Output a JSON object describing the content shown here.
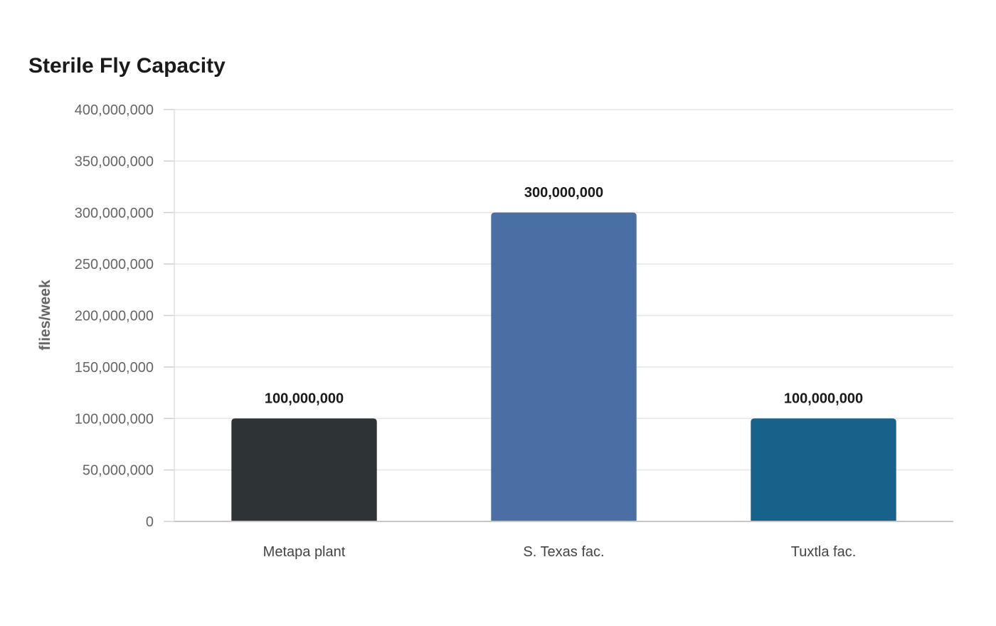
{
  "chart_data": {
    "type": "bar",
    "title": "Sterile Fly Capacity",
    "xlabel": "",
    "ylabel": "flies/week",
    "categories": [
      "Metapa plant",
      "S. Texas fac.",
      "Tuxtla fac."
    ],
    "values": [
      100000000,
      300000000,
      100000000
    ],
    "data_labels": [
      "100,000,000",
      "300,000,000",
      "100,000,000"
    ],
    "colors": [
      "#2e3436",
      "#4a6fa5",
      "#17628a"
    ],
    "ylim": [
      0,
      400000000
    ],
    "yticks": [
      0,
      50000000,
      100000000,
      150000000,
      200000000,
      250000000,
      300000000,
      350000000,
      400000000
    ],
    "ytick_labels": [
      "0",
      "50,000,000",
      "100,000,000",
      "150,000,000",
      "200,000,000",
      "250,000,000",
      "300,000,000",
      "350,000,000",
      "400,000,000"
    ],
    "grid": true,
    "legend": "none"
  }
}
